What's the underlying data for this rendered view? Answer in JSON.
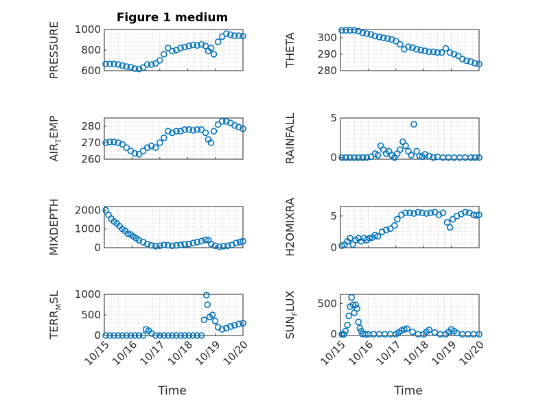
{
  "figure": {
    "title": "Figure 1 medium",
    "marker_color": "#0072BD",
    "x_tick_labels": [
      "10/15",
      "10/16",
      "10/17",
      "10/18",
      "10/19",
      "10/20"
    ],
    "xlabel": "Time"
  },
  "chart_data": [
    {
      "type": "scatter",
      "ylabel": "PRESSURE",
      "xlim": [
        0,
        5
      ],
      "ylim": [
        600,
        1000
      ],
      "yticks": [
        600,
        800,
        1000
      ],
      "yticklabels": [
        "600",
        "800",
        "1000"
      ],
      "x": [
        0.05,
        0.2,
        0.35,
        0.5,
        0.65,
        0.8,
        0.95,
        1.1,
        1.25,
        1.4,
        1.55,
        1.7,
        1.85,
        2.0,
        2.15,
        2.3,
        2.45,
        2.6,
        2.75,
        2.9,
        3.05,
        3.2,
        3.35,
        3.5,
        3.65,
        3.75,
        3.85,
        3.95,
        4.1,
        4.25,
        4.4,
        4.55,
        4.7,
        4.85,
        5.0
      ],
      "values": [
        665,
        665,
        665,
        660,
        650,
        640,
        635,
        620,
        615,
        630,
        660,
        660,
        670,
        700,
        760,
        820,
        790,
        800,
        820,
        830,
        840,
        850,
        845,
        855,
        840,
        790,
        820,
        760,
        880,
        930,
        960,
        950,
        940,
        940,
        935
      ]
    },
    {
      "type": "scatter",
      "ylabel": "THETA",
      "xlim": [
        0,
        5
      ],
      "ylim": [
        280,
        305
      ],
      "yticks": [
        280,
        290,
        300
      ],
      "yticklabels": [
        "280",
        "290",
        "300"
      ],
      "x": [
        0.05,
        0.2,
        0.35,
        0.5,
        0.65,
        0.8,
        0.95,
        1.1,
        1.25,
        1.4,
        1.55,
        1.7,
        1.85,
        2.0,
        2.15,
        2.3,
        2.45,
        2.6,
        2.75,
        2.9,
        3.05,
        3.2,
        3.35,
        3.5,
        3.65,
        3.8,
        3.95,
        4.1,
        4.25,
        4.4,
        4.55,
        4.7,
        4.85,
        5.0
      ],
      "values": [
        304.5,
        304.5,
        304.5,
        304.5,
        304,
        303,
        302.5,
        302,
        301,
        300.5,
        300,
        299.5,
        299,
        298,
        296,
        293,
        294.5,
        294,
        293,
        292.5,
        292,
        291.5,
        291.5,
        291,
        291,
        293.5,
        291,
        290,
        289,
        287,
        286,
        285.5,
        284.5,
        284
      ]
    },
    {
      "type": "scatter",
      "ylabel": "AIR_TEMP",
      "xlim": [
        0,
        5
      ],
      "ylim": [
        260,
        285
      ],
      "yticks": [
        260,
        270,
        280
      ],
      "yticklabels": [
        "260",
        "270",
        "280"
      ],
      "x": [
        0.05,
        0.2,
        0.35,
        0.5,
        0.65,
        0.8,
        0.95,
        1.1,
        1.25,
        1.4,
        1.55,
        1.7,
        1.85,
        2.0,
        2.15,
        2.3,
        2.45,
        2.6,
        2.75,
        2.9,
        3.05,
        3.2,
        3.35,
        3.5,
        3.65,
        3.75,
        3.85,
        3.95,
        4.1,
        4.25,
        4.4,
        4.55,
        4.7,
        4.85,
        5.0
      ],
      "values": [
        270,
        270.5,
        270.5,
        270,
        269,
        267,
        265,
        263.5,
        263,
        265,
        267,
        268,
        267,
        270,
        273,
        277,
        276,
        277,
        277,
        278,
        278,
        277.5,
        278,
        278,
        276,
        272,
        270,
        277,
        281,
        283,
        283,
        282,
        280.5,
        279.5,
        278.5
      ]
    },
    {
      "type": "scatter",
      "ylabel": "RAINFALL",
      "xlim": [
        0,
        5
      ],
      "ylim": [
        -0.2,
        5
      ],
      "yticks": [
        0,
        5
      ],
      "yticklabels": [
        "0",
        "5"
      ],
      "x": [
        0.05,
        0.2,
        0.35,
        0.5,
        0.65,
        0.8,
        0.95,
        1.1,
        1.25,
        1.35,
        1.45,
        1.55,
        1.65,
        1.75,
        1.85,
        1.95,
        2.05,
        2.15,
        2.25,
        2.35,
        2.45,
        2.55,
        2.65,
        2.75,
        2.85,
        2.95,
        3.05,
        3.2,
        3.35,
        3.5,
        3.7,
        3.9,
        4.1,
        4.3,
        4.5,
        4.7,
        4.85,
        5.0
      ],
      "values": [
        0,
        0,
        0,
        0,
        0,
        0,
        0,
        0.1,
        0.5,
        0.3,
        1.5,
        1.0,
        0.5,
        0.8,
        0.3,
        0,
        0.5,
        1.0,
        2.0,
        1.5,
        0.8,
        0.3,
        4.2,
        0.8,
        0.2,
        0.1,
        0.4,
        0.2,
        0,
        0.1,
        0,
        0,
        0,
        0,
        0,
        0,
        0,
        0
      ]
    },
    {
      "type": "scatter",
      "ylabel": "MIXDEPTH",
      "xlim": [
        0,
        5
      ],
      "ylim": [
        0,
        2200
      ],
      "yticks": [
        0,
        1000,
        2000
      ],
      "yticklabels": [
        "0",
        "1000",
        "2000"
      ],
      "x": [
        0.05,
        0.15,
        0.25,
        0.35,
        0.45,
        0.55,
        0.65,
        0.75,
        0.85,
        0.95,
        1.05,
        1.15,
        1.25,
        1.4,
        1.55,
        1.7,
        1.85,
        2.0,
        2.15,
        2.3,
        2.45,
        2.6,
        2.75,
        2.9,
        3.05,
        3.2,
        3.35,
        3.5,
        3.65,
        3.75,
        3.85,
        4.0,
        4.15,
        4.3,
        4.45,
        4.6,
        4.75,
        4.9,
        5.0
      ],
      "values": [
        2000,
        1750,
        1550,
        1400,
        1300,
        1150,
        1000,
        900,
        750,
        700,
        600,
        500,
        400,
        300,
        200,
        120,
        80,
        100,
        150,
        130,
        100,
        120,
        150,
        180,
        200,
        250,
        300,
        350,
        420,
        400,
        200,
        100,
        50,
        80,
        100,
        150,
        250,
        300,
        350
      ]
    },
    {
      "type": "scatter",
      "ylabel": "H2OMIXRA",
      "xlim": [
        0,
        5
      ],
      "ylim": [
        0,
        6.5
      ],
      "yticks": [
        0,
        5
      ],
      "yticklabels": [
        "0",
        "5"
      ],
      "x": [
        0.05,
        0.15,
        0.25,
        0.35,
        0.45,
        0.55,
        0.65,
        0.75,
        0.85,
        0.95,
        1.05,
        1.15,
        1.25,
        1.35,
        1.5,
        1.65,
        1.8,
        1.95,
        2.05,
        2.2,
        2.35,
        2.5,
        2.65,
        2.8,
        2.95,
        3.1,
        3.25,
        3.4,
        3.55,
        3.7,
        3.85,
        3.95,
        4.05,
        4.2,
        4.35,
        4.5,
        4.65,
        4.8,
        4.9,
        5.0
      ],
      "values": [
        0.3,
        0.5,
        1.0,
        1.5,
        0.5,
        1.2,
        1.5,
        1.0,
        1.5,
        1.2,
        1.5,
        1.6,
        2.0,
        1.8,
        2.5,
        2.8,
        3.0,
        3.5,
        4.5,
        5.2,
        5.5,
        5.5,
        5.4,
        5.6,
        5.5,
        5.4,
        5.5,
        5.6,
        5.2,
        5.5,
        4.0,
        3.2,
        4.5,
        5.0,
        5.3,
        5.6,
        5.5,
        5.2,
        5.1,
        5.2
      ]
    },
    {
      "type": "scatter",
      "ylabel": "TERR_MSL",
      "xlim": [
        0,
        5
      ],
      "ylim": [
        0,
        1000
      ],
      "yticks": [
        0,
        500,
        1000
      ],
      "yticklabels": [
        "0",
        "500",
        "1000"
      ],
      "x": [
        0.05,
        0.2,
        0.35,
        0.5,
        0.65,
        0.8,
        0.95,
        1.1,
        1.25,
        1.4,
        1.5,
        1.6,
        1.7,
        1.85,
        2.0,
        2.15,
        2.3,
        2.45,
        2.6,
        2.75,
        2.9,
        3.05,
        3.2,
        3.35,
        3.5,
        3.6,
        3.68,
        3.72,
        3.8,
        3.9,
        4.0,
        4.1,
        4.25,
        4.4,
        4.55,
        4.7,
        4.85,
        5.0
      ],
      "values": [
        0,
        0,
        0,
        0,
        0,
        0,
        0,
        0,
        0,
        0,
        150,
        120,
        50,
        0,
        0,
        0,
        0,
        0,
        0,
        0,
        0,
        0,
        0,
        0,
        0,
        380,
        980,
        750,
        450,
        500,
        350,
        200,
        150,
        180,
        220,
        250,
        280,
        300
      ]
    },
    {
      "type": "scatter",
      "ylabel": "SUN_FLUX",
      "xlim": [
        0,
        5
      ],
      "ylim": [
        -20,
        650
      ],
      "yticks": [
        0,
        500
      ],
      "yticklabels": [
        "0",
        "500"
      ],
      "x": [
        0.05,
        0.12,
        0.18,
        0.25,
        0.3,
        0.35,
        0.4,
        0.45,
        0.5,
        0.55,
        0.6,
        0.65,
        0.7,
        0.75,
        0.8,
        0.9,
        1.0,
        1.2,
        1.4,
        1.6,
        1.8,
        2.0,
        2.1,
        2.2,
        2.3,
        2.4,
        2.6,
        2.8,
        3.0,
        3.1,
        3.2,
        3.4,
        3.6,
        3.8,
        3.9,
        4.0,
        4.1,
        4.2,
        4.4,
        4.6,
        4.8,
        5.0
      ],
      "values": [
        0,
        0,
        50,
        150,
        300,
        450,
        600,
        480,
        350,
        480,
        420,
        200,
        100,
        50,
        0,
        0,
        0,
        0,
        0,
        0,
        0,
        0,
        30,
        60,
        80,
        90,
        40,
        0,
        0,
        40,
        70,
        30,
        0,
        0,
        40,
        80,
        50,
        20,
        0,
        0,
        0,
        0
      ]
    }
  ]
}
